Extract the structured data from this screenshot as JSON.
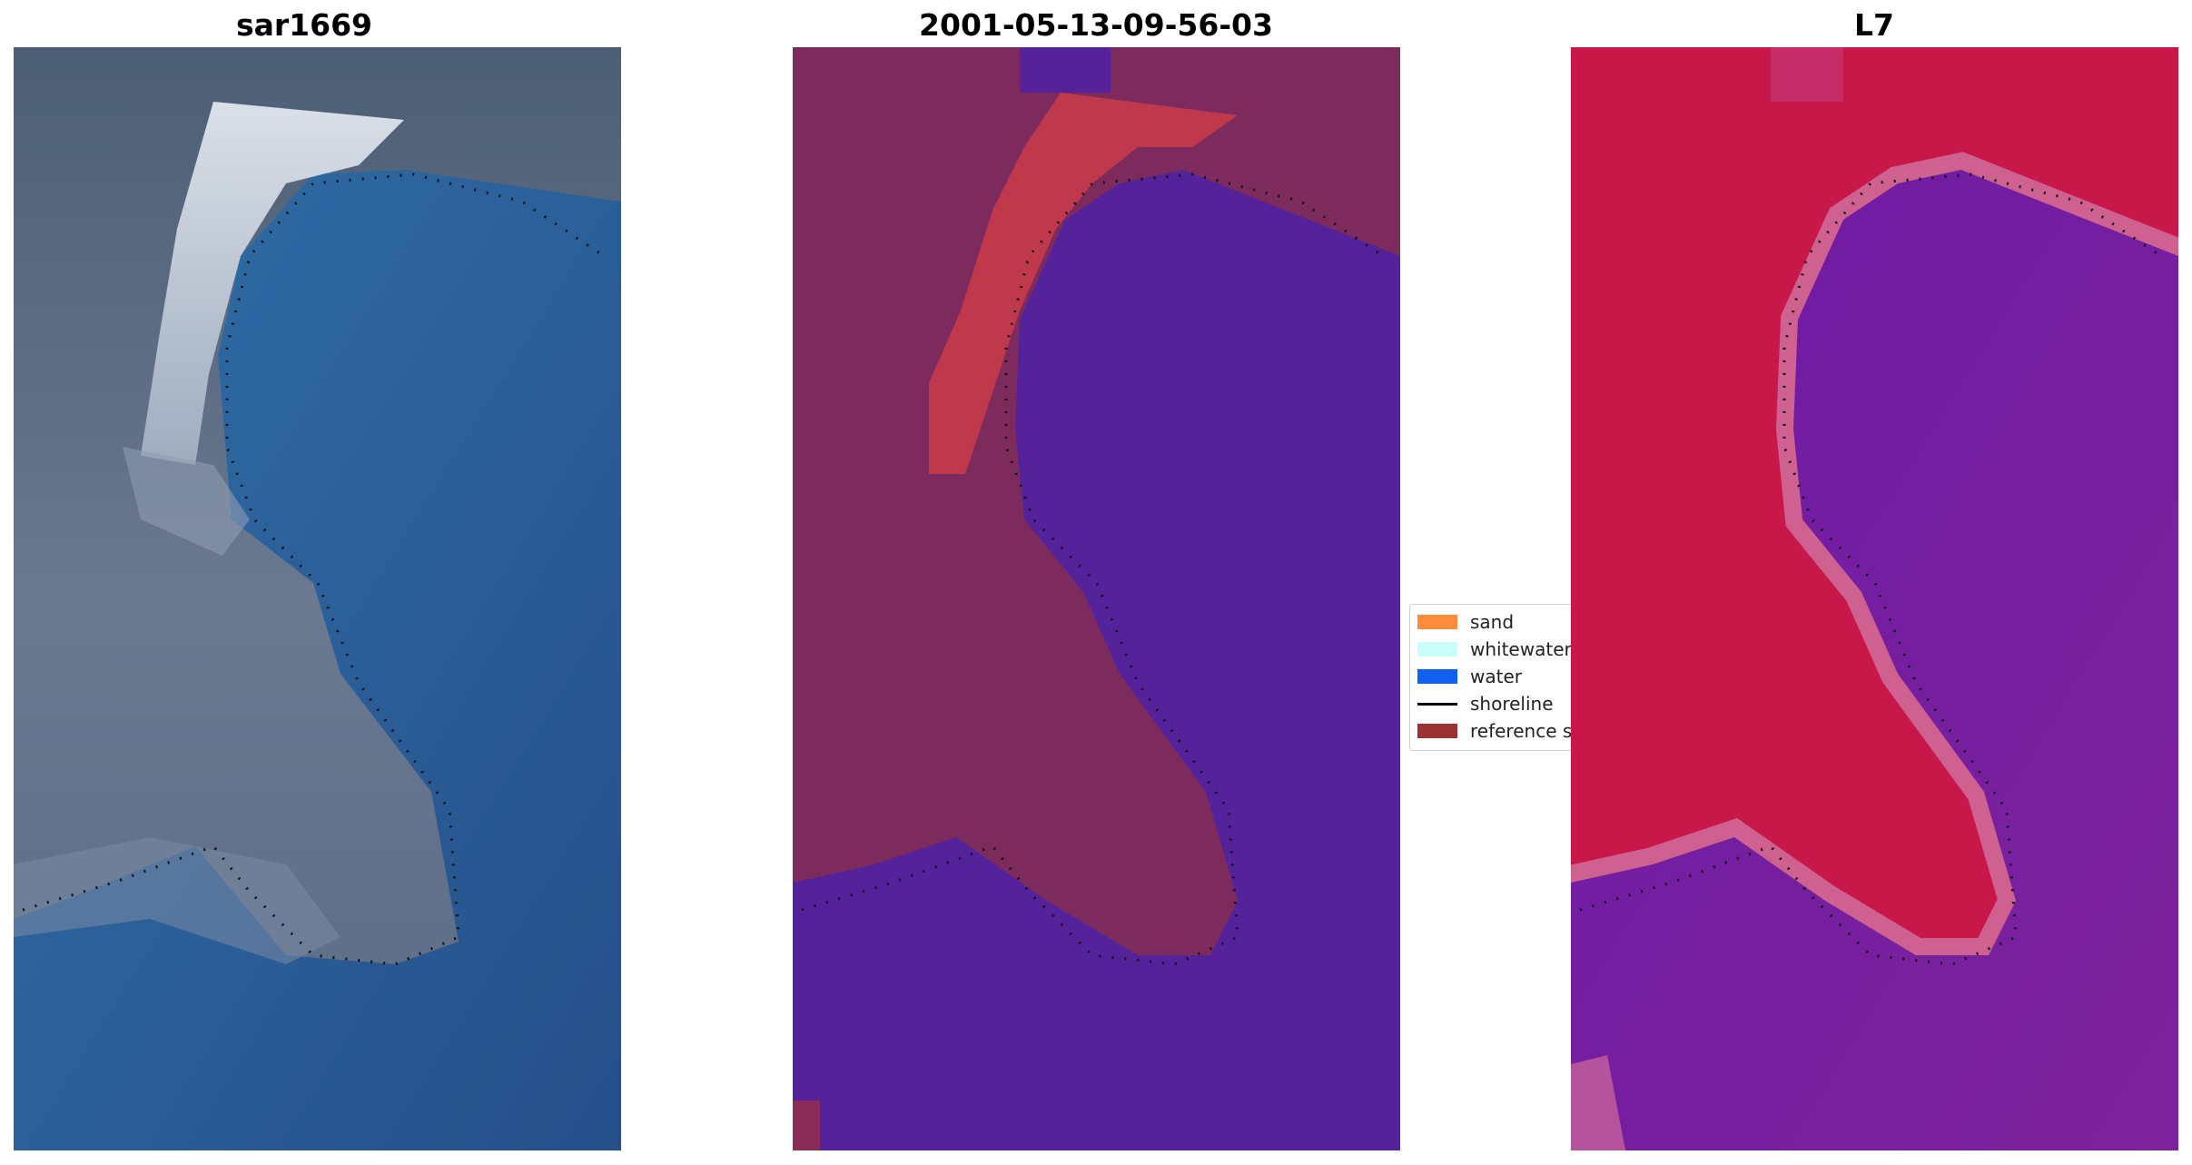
{
  "panels": [
    {
      "title": "sar1669",
      "icon": "rgb-image"
    },
    {
      "title": "2001-05-13-09-56-03",
      "icon": "classified-image"
    },
    {
      "title": "L7",
      "icon": "mndwi-image"
    }
  ],
  "legend": {
    "items": [
      {
        "label": "sand",
        "color": "#ff8c3a"
      },
      {
        "label": "whitewater",
        "color": "#c8fffa"
      },
      {
        "label": "water",
        "color": "#1060f0"
      },
      {
        "label": "shoreline",
        "color": "#000000"
      },
      {
        "label": "reference shoreline",
        "color": "#9b3232"
      }
    ]
  },
  "colors": {
    "land_panel1": "#53657a",
    "sea_panel1": "#2f6aa3",
    "land_panel2": "#7a2a5c",
    "sea_panel2": "#54229a",
    "sand_panel2": "#c0384c",
    "land_panel3": "#c8184a",
    "sea_panel3": "#7a1fa2"
  }
}
